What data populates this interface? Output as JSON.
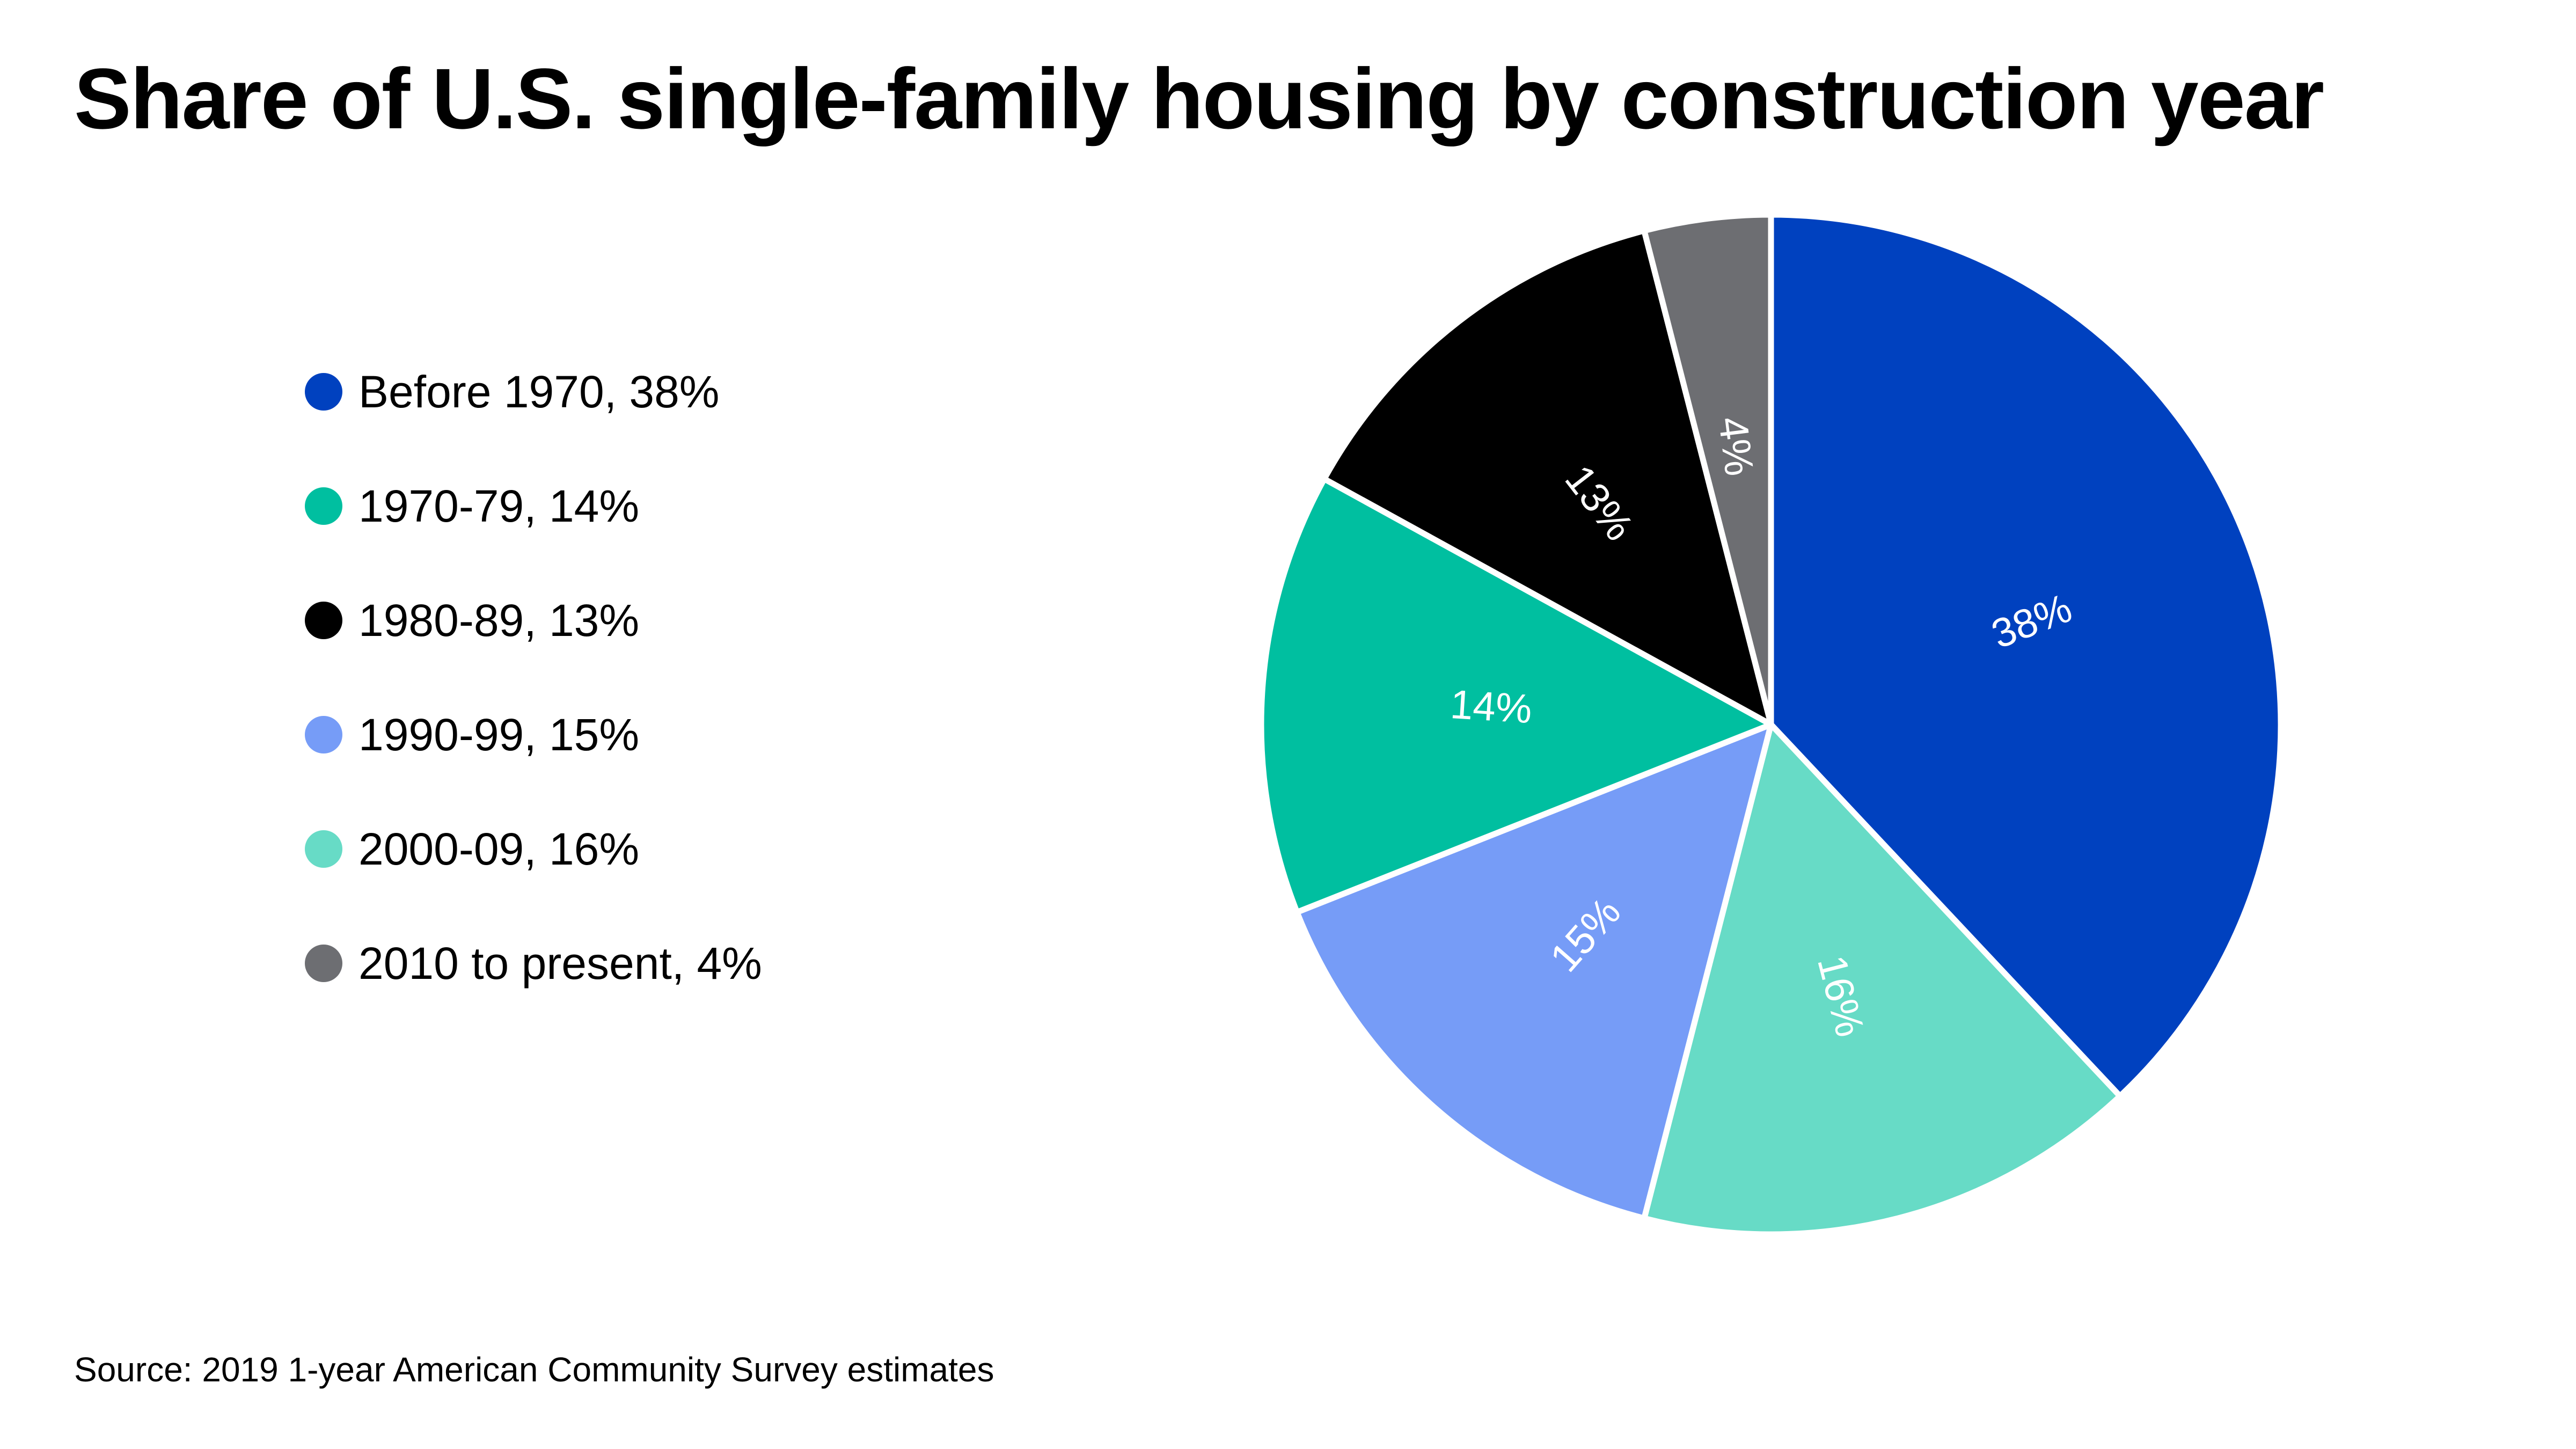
{
  "chart_data": {
    "type": "pie",
    "title": "Share of U.S. single-family housing by construction year",
    "start_angle_deg": 0,
    "direction": "clockwise",
    "legend_position": "left",
    "slices": [
      {
        "name": "Before 1970",
        "value": 38,
        "label": "38%",
        "legend_label": "Before 1970, 38%",
        "color": "#0041BF"
      },
      {
        "name": "2000-09",
        "value": 16,
        "label": "16%",
        "legend_label": "2000-09, 16%",
        "color": "#67DBC6"
      },
      {
        "name": "1990-99",
        "value": 15,
        "label": "15%",
        "legend_label": "1990-99, 15%",
        "color": "#769CF7"
      },
      {
        "name": "1970-79",
        "value": 14,
        "label": "14%",
        "legend_label": "1970-79, 14%",
        "color": "#00BFA0"
      },
      {
        "name": "1980-89",
        "value": 13,
        "label": "13%",
        "legend_label": "1980-89, 13%",
        "color": "#000000"
      },
      {
        "name": "2010 to present",
        "value": 4,
        "label": "4%",
        "legend_label": "2010 to present, 4%",
        "color": "#6D6E72"
      }
    ],
    "legend_order": [
      "Before 1970",
      "1970-79",
      "1980-89",
      "1990-99",
      "2000-09",
      "2010 to present"
    ],
    "source": "Source: 2019 1-year American Community Survey estimates"
  }
}
